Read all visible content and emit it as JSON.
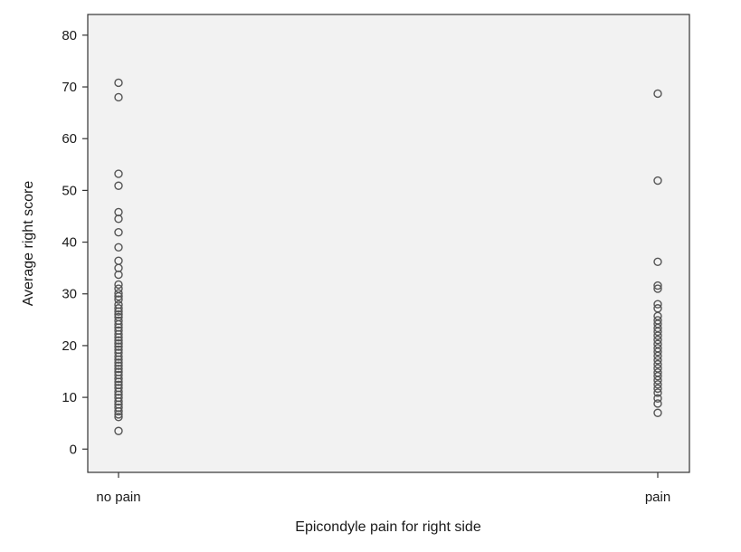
{
  "chart_data": {
    "type": "scatter",
    "title": "",
    "xlabel": "Epicondyle pain for right side",
    "ylabel": "Average right score",
    "ylim": [
      -4.5,
      84
    ],
    "yticks": [
      0,
      10,
      20,
      30,
      40,
      50,
      60,
      70,
      80
    ],
    "categories": [
      "no pain",
      "pain"
    ],
    "grid": false,
    "legend": "none",
    "colors": {
      "plot_background": "#f2f2f2",
      "marker_stroke": "#555555",
      "frame": "#333333"
    },
    "series": [
      {
        "category": "no pain",
        "values": [
          70.8,
          68.0,
          53.2,
          50.9,
          45.8,
          44.5,
          41.9,
          39.0,
          36.4,
          35.0,
          33.7,
          31.8,
          31.0,
          30.1,
          29.5,
          28.9,
          27.9,
          27.2,
          26.6,
          26.0,
          25.5,
          24.8,
          24.1,
          23.5,
          22.9,
          22.2,
          21.6,
          21.0,
          20.4,
          19.8,
          19.2,
          18.6,
          17.9,
          17.3,
          16.7,
          16.1,
          15.5,
          14.9,
          14.3,
          13.6,
          13.0,
          12.4,
          11.8,
          11.1,
          10.5,
          9.9,
          9.2,
          8.6,
          8.0,
          7.3,
          6.7,
          6.2,
          3.5
        ]
      },
      {
        "category": "pain",
        "values": [
          68.7,
          51.9,
          36.2,
          31.6,
          31.0,
          28.0,
          27.2,
          25.7,
          24.9,
          24.2,
          23.4,
          22.7,
          21.9,
          21.1,
          20.3,
          19.5,
          18.8,
          18.0,
          17.2,
          16.4,
          15.6,
          14.8,
          14.1,
          13.3,
          12.5,
          11.7,
          10.9,
          9.8,
          8.8,
          7.0
        ]
      }
    ]
  }
}
